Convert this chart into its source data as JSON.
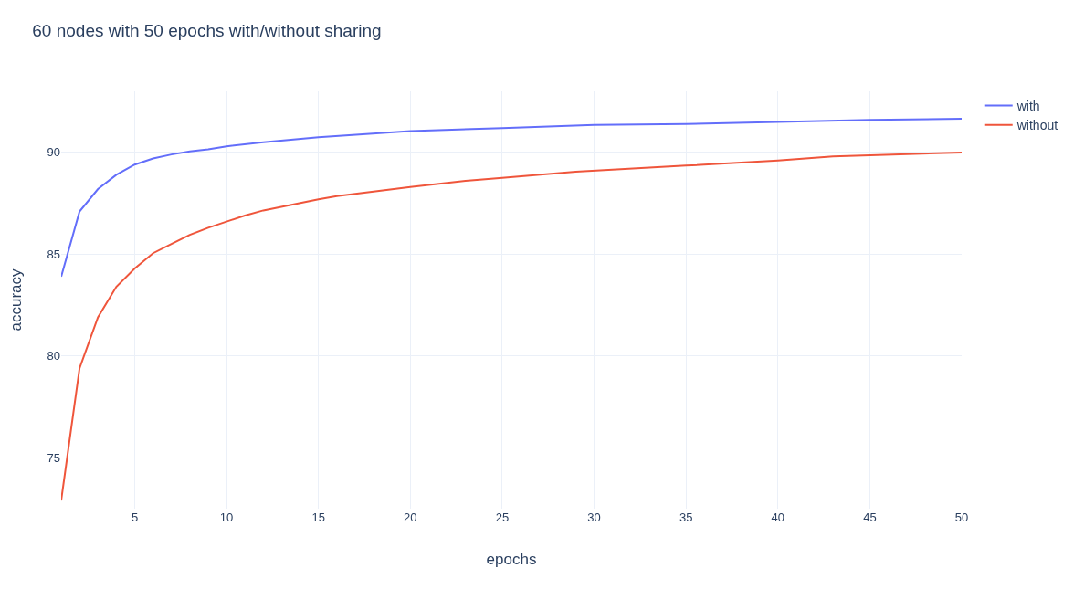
{
  "chart_data": {
    "type": "line",
    "title": "60 nodes with 50 epochs with/without sharing",
    "xlabel": "epochs",
    "ylabel": "accuracy",
    "series": [
      {
        "name": "with",
        "color": "#636efa",
        "x": [
          1,
          2,
          3,
          4,
          5,
          6,
          7,
          8,
          9,
          10,
          12,
          15,
          20,
          25,
          30,
          35,
          40,
          45,
          50
        ],
        "values": [
          83.9,
          87.1,
          88.2,
          88.9,
          89.4,
          89.7,
          89.9,
          90.05,
          90.15,
          90.3,
          90.5,
          90.75,
          91.05,
          91.2,
          91.35,
          91.4,
          91.5,
          91.6,
          91.65
        ]
      },
      {
        "name": "without",
        "color": "#ef553b",
        "x": [
          1,
          2,
          3,
          4,
          5,
          6,
          7,
          8,
          9,
          10,
          11,
          12,
          15,
          16,
          20,
          23,
          25,
          29,
          35,
          40,
          43,
          50
        ],
        "values": [
          72.9,
          79.4,
          81.9,
          83.4,
          84.3,
          85.05,
          85.5,
          85.95,
          86.3,
          86.6,
          86.9,
          87.15,
          87.7,
          87.85,
          88.3,
          88.6,
          88.75,
          89.05,
          89.35,
          89.6,
          89.8,
          90.0
        ]
      }
    ],
    "xlim": [
      1,
      50
    ],
    "xticks": [
      5,
      10,
      15,
      20,
      25,
      30,
      35,
      40,
      45,
      50
    ],
    "ylim": [
      72.5,
      93
    ],
    "yticks": [
      75,
      80,
      85,
      90
    ],
    "grid": true,
    "legend": "top right",
    "marker": "none",
    "line_style": "solid"
  }
}
